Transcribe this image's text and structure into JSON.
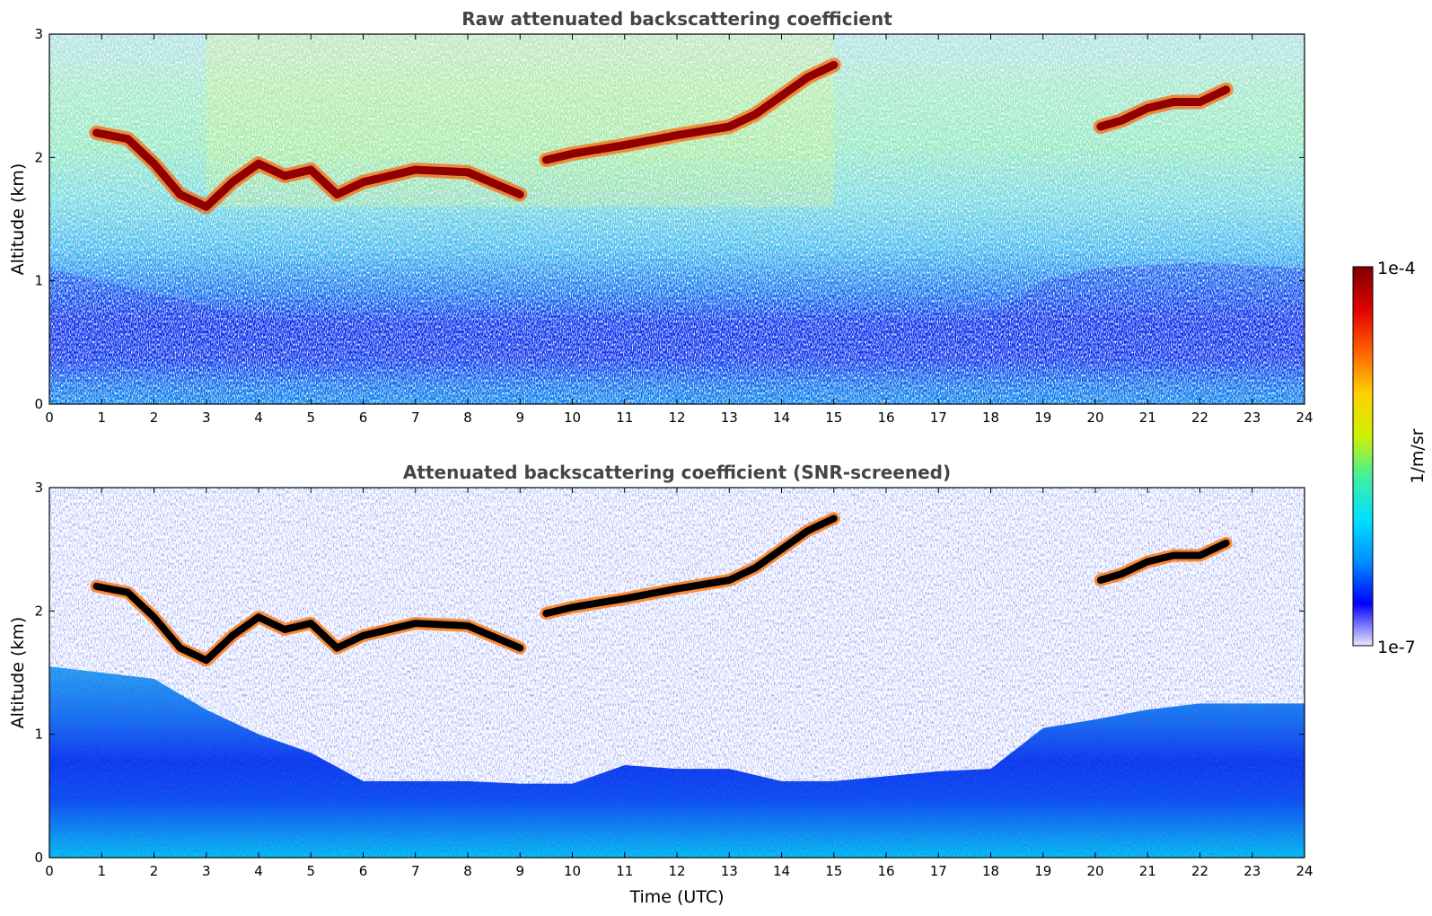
{
  "chart_data": [
    {
      "type": "heatmap",
      "title": "Raw attenuated backscattering coefficient",
      "xlabel": "",
      "ylabel": "Altitude (km)",
      "xlim": [
        0,
        24
      ],
      "ylim": [
        0,
        3
      ],
      "x_ticks": [
        "0",
        "1",
        "2",
        "3",
        "4",
        "5",
        "6",
        "7",
        "8",
        "9",
        "10",
        "11",
        "12",
        "13",
        "14",
        "15",
        "16",
        "17",
        "18",
        "19",
        "20",
        "21",
        "22",
        "23",
        "24"
      ],
      "y_ticks": [
        "0",
        "1",
        "2",
        "3"
      ],
      "cloud_layers": [
        {
          "x": [
            0.9,
            1.5,
            2.0,
            2.5,
            3.0,
            3.5,
            4.0,
            4.5,
            5.0,
            5.5,
            6.0,
            7.0,
            8.0,
            9.0
          ],
          "y": [
            2.2,
            2.15,
            1.95,
            1.7,
            1.6,
            1.8,
            1.95,
            1.85,
            1.9,
            1.7,
            1.8,
            1.9,
            1.88,
            1.7
          ]
        },
        {
          "x": [
            9.5,
            10.0,
            11.0,
            12.0,
            13.0,
            13.5,
            14.0,
            14.5,
            15.0
          ],
          "y": [
            1.98,
            2.03,
            2.1,
            2.18,
            2.25,
            2.35,
            2.5,
            2.65,
            2.75
          ]
        },
        {
          "x": [
            20.1,
            20.5,
            21.0,
            21.5,
            22.0,
            22.5
          ],
          "y": [
            2.25,
            2.3,
            2.4,
            2.45,
            2.45,
            2.55
          ]
        }
      ],
      "boundary_layer_top": {
        "x": [
          0,
          2,
          4,
          6,
          8,
          10,
          12,
          14,
          16,
          18,
          19,
          20,
          22,
          24
        ],
        "y": [
          1.1,
          0.9,
          0.7,
          0.6,
          0.6,
          0.55,
          0.6,
          0.6,
          0.6,
          0.7,
          1.0,
          1.1,
          1.15,
          1.1
        ]
      }
    },
    {
      "type": "heatmap",
      "title": "Attenuated backscattering coefficient (SNR-screened)",
      "xlabel": "Time (UTC)",
      "ylabel": "Altitude (km)",
      "xlim": [
        0,
        24
      ],
      "ylim": [
        0,
        3
      ],
      "x_ticks": [
        "0",
        "1",
        "2",
        "3",
        "4",
        "5",
        "6",
        "7",
        "8",
        "9",
        "10",
        "11",
        "12",
        "13",
        "14",
        "15",
        "16",
        "17",
        "18",
        "19",
        "20",
        "21",
        "22",
        "23",
        "24"
      ],
      "y_ticks": [
        "0",
        "1",
        "2",
        "3"
      ],
      "screened_top": {
        "x": [
          0,
          1,
          2,
          3,
          4,
          5,
          6,
          7,
          8,
          9,
          10,
          11,
          12,
          13,
          14,
          15,
          16,
          17,
          18,
          19,
          20,
          21,
          22,
          23,
          24
        ],
        "y": [
          1.55,
          1.5,
          1.45,
          1.2,
          1.0,
          0.85,
          0.62,
          0.62,
          0.62,
          0.6,
          0.6,
          0.75,
          0.72,
          0.72,
          0.62,
          0.62,
          0.66,
          0.7,
          0.72,
          1.05,
          1.12,
          1.2,
          1.25,
          1.25,
          1.25
        ]
      }
    }
  ],
  "colorbar": {
    "label": "1/m/sr",
    "max_label": "1e-4",
    "min_label": "1e-7",
    "scale": "log",
    "range": [
      1e-07,
      0.0001
    ],
    "colormap": [
      "#e8e8f8",
      "#0000ff",
      "#0090ff",
      "#00e0ff",
      "#40f0a0",
      "#d0f000",
      "#ffd000",
      "#ff6000",
      "#e00000",
      "#800000"
    ],
    "saturated_color": "#000000"
  }
}
